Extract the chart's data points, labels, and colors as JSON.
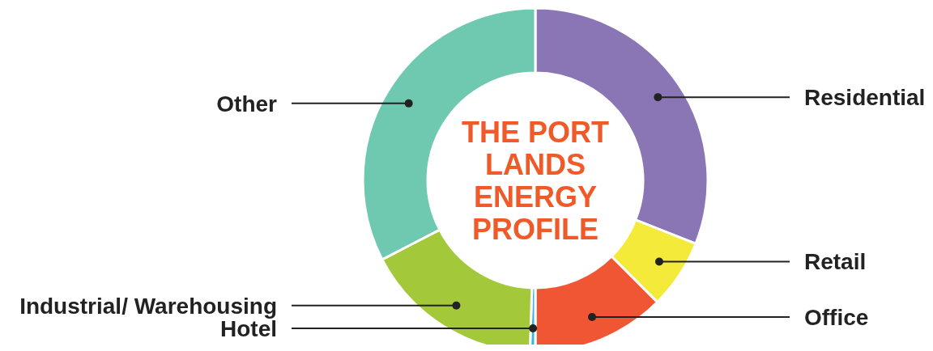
{
  "chart_data": {
    "type": "donut",
    "title": "THE PORT LANDS ENERGY PROFILE",
    "categories": [
      "Residential",
      "Retail",
      "Office",
      "Hotel",
      "Industrial/ Warehousing",
      "Other"
    ],
    "values": [
      31,
      6.5,
      12.5,
      0.5,
      16.9,
      32.6
    ],
    "colors": [
      "#8a76b5",
      "#f4ea3a",
      "#f05534",
      "#3ab4e6",
      "#a3c93a",
      "#6fc8b0"
    ],
    "legend": false
  }
}
